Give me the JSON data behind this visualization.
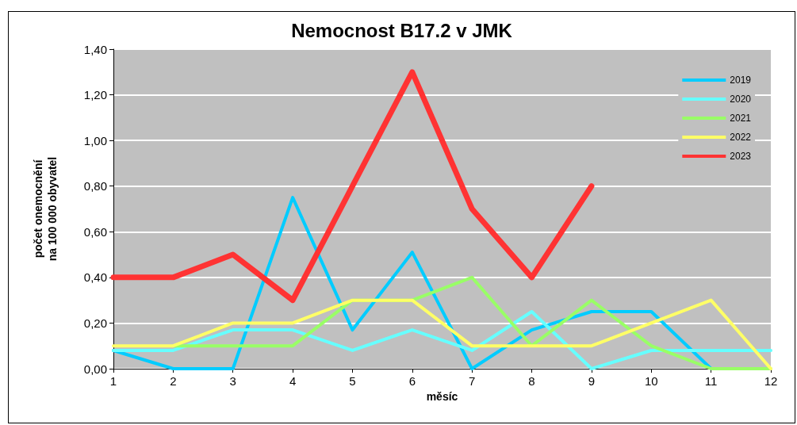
{
  "chart_data": {
    "type": "line",
    "title": "Nemocnost B17.2 v JMK",
    "xlabel": "měsíc",
    "ylabel": "počet onemocnění\nna 100 000 obyvatel",
    "x": [
      1,
      2,
      3,
      4,
      5,
      6,
      7,
      8,
      9,
      10,
      11,
      12
    ],
    "series": [
      {
        "name": "2019",
        "color": "#00ccff",
        "values": [
          0.08,
          0,
          0,
          0.75,
          0.17,
          0.51,
          0,
          0.17,
          0.25,
          0.25,
          0,
          null
        ]
      },
      {
        "name": "2020",
        "color": "#66ffff",
        "values": [
          0.08,
          0.08,
          0.17,
          0.17,
          0.08,
          0.17,
          0.08,
          0.25,
          0,
          0.08,
          0.08,
          0.08
        ]
      },
      {
        "name": "2021",
        "color": "#99ff66",
        "values": [
          null,
          0.1,
          0.1,
          0.1,
          0.3,
          0.3,
          0.4,
          0.1,
          0.3,
          0.1,
          0,
          0
        ]
      },
      {
        "name": "2022",
        "color": "#ffff66",
        "values": [
          0.1,
          0.1,
          0.2,
          0.2,
          0.3,
          0.3,
          0.1,
          0.1,
          0.1,
          0.2,
          0.3,
          0
        ]
      },
      {
        "name": "2023",
        "color": "#ff3333",
        "values": [
          0.4,
          0.4,
          0.5,
          0.3,
          0.8,
          1.3,
          0.7,
          0.4,
          0.8,
          null,
          null,
          null
        ]
      }
    ],
    "xlim": [
      1,
      12
    ],
    "xticks": [
      1,
      2,
      3,
      4,
      5,
      6,
      7,
      8,
      9,
      10,
      11,
      12
    ],
    "ylim": [
      0,
      1.4
    ],
    "yticks": [
      {
        "value": 0,
        "label": "0,00"
      },
      {
        "value": 0.2,
        "label": "0,20"
      },
      {
        "value": 0.4,
        "label": "0,40"
      },
      {
        "value": 0.6,
        "label": "0,60"
      },
      {
        "value": 0.8,
        "label": "0,80"
      },
      {
        "value": 1,
        "label": "1,00"
      },
      {
        "value": 1.2,
        "label": "1,20"
      },
      {
        "value": 1.4,
        "label": "1,40"
      }
    ],
    "grid": "y",
    "legend": "top right",
    "marker": "none",
    "line_style": "solid"
  }
}
